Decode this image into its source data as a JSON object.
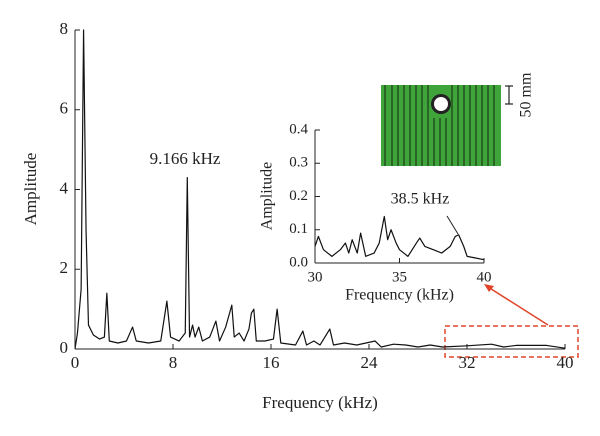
{
  "chart_data": [
    {
      "type": "line",
      "x_label": "Frequency (kHz)",
      "y_label": "Amplitude",
      "annotation": "9.166 kHz",
      "color": "#111111",
      "x": [
        0,
        0.2,
        0.5,
        0.7,
        0.9,
        1.1,
        1.5,
        2.0,
        2.4,
        2.6,
        2.8,
        3.5,
        4.2,
        4.7,
        5.0,
        6.0,
        7.0,
        7.5,
        7.8,
        8.5,
        9.0,
        9.166,
        9.35,
        9.6,
        9.8,
        10.1,
        10.4,
        11.0,
        11.5,
        11.8,
        12.3,
        12.8,
        13.0,
        13.4,
        13.8,
        14.2,
        14.4,
        14.6,
        14.8,
        15.5,
        16.2,
        16.5,
        16.8,
        18,
        18.6,
        18.9,
        19.5,
        20,
        20.8,
        21.1,
        22,
        23,
        24.5,
        25,
        26,
        27,
        28,
        29,
        30,
        32,
        34,
        35,
        36,
        38.5,
        40
      ],
      "values": [
        0,
        0.4,
        1.5,
        8,
        3,
        0.6,
        0.35,
        0.25,
        0.3,
        1.4,
        0.2,
        0.15,
        0.2,
        0.55,
        0.2,
        0.15,
        0.2,
        1.2,
        0.3,
        0.2,
        0.4,
        4.3,
        0.3,
        0.6,
        0.3,
        0.55,
        0.2,
        0.3,
        0.7,
        0.2,
        0.55,
        1.1,
        0.3,
        0.4,
        0.2,
        0.5,
        0.9,
        1.0,
        0.2,
        0.2,
        0.25,
        1.0,
        0.15,
        0.1,
        0.45,
        0.1,
        0.2,
        0.1,
        0.5,
        0.1,
        0.15,
        0.1,
        0.2,
        0.05,
        0.12,
        0.1,
        0.05,
        0.1,
        0.05,
        0.08,
        0.12,
        0.05,
        0.09,
        0.09,
        0.02
      ],
      "xlim": [
        0,
        40
      ],
      "ylim": [
        0,
        8
      ],
      "xticks": [
        0,
        8,
        16,
        24,
        32,
        40
      ],
      "yticks": [
        0,
        2,
        4,
        6,
        8
      ]
    },
    {
      "type": "line",
      "x_label": "Frequency (kHz)",
      "y_label": "Amplitude",
      "annotation": "38.5 kHz",
      "scale_label": "50 mm",
      "color": "#111111",
      "x": [
        30,
        30.2,
        30.5,
        31,
        31.5,
        31.8,
        32.0,
        32.2,
        32.5,
        32.7,
        33.0,
        33.5,
        33.8,
        34.1,
        34.3,
        34.5,
        34.8,
        35,
        35.5,
        36.0,
        36.2,
        36.5,
        37,
        37.5,
        38,
        38.3,
        38.5,
        38.8,
        39,
        39.5,
        40
      ],
      "values": [
        0.05,
        0.08,
        0.04,
        0.02,
        0.04,
        0.06,
        0.03,
        0.07,
        0.03,
        0.09,
        0.02,
        0.03,
        0.06,
        0.14,
        0.07,
        0.1,
        0.06,
        0.04,
        0.02,
        0.06,
        0.075,
        0.05,
        0.04,
        0.03,
        0.05,
        0.08,
        0.085,
        0.05,
        0.02,
        0.015,
        0.01
      ],
      "xlim": [
        30,
        40
      ],
      "ylim": [
        0,
        0.4
      ],
      "xticks": [
        30,
        35,
        40
      ],
      "yticks": [
        {
          "value": 0,
          "label": "0.0"
        },
        0.1,
        0.2,
        0.3,
        0.4
      ]
    }
  ]
}
